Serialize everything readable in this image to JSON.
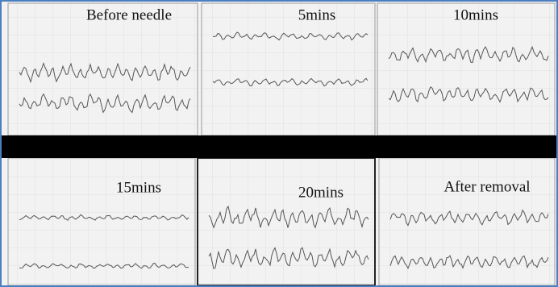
{
  "panels": [
    {
      "label": "Before needle"
    },
    {
      "label": "5mins"
    },
    {
      "label": "10mins"
    },
    {
      "label": "15mins"
    },
    {
      "label": "20mins"
    },
    {
      "label": "After removal"
    }
  ]
}
